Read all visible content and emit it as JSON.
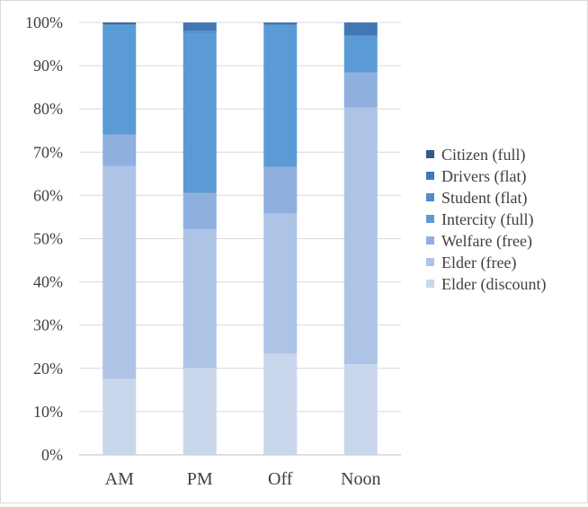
{
  "chart_data": {
    "type": "bar",
    "stacked": true,
    "percent_stacked": true,
    "title": "",
    "xlabel": "",
    "ylabel": "",
    "ylim": [
      0,
      100
    ],
    "yticks": [
      "0%",
      "10%",
      "20%",
      "30%",
      "40%",
      "50%",
      "60%",
      "70%",
      "80%",
      "90%",
      "100%"
    ],
    "grid": true,
    "legend_position": "right",
    "categories": [
      "AM",
      "PM",
      "Off",
      "Noon"
    ],
    "series": [
      {
        "name": "Elder (discount)",
        "color": "#c9d6ec",
        "values": [
          17.6,
          20.1,
          23.4,
          21.0
        ]
      },
      {
        "name": "Elder (free)",
        "color": "#adc4e6",
        "values": [
          49.2,
          32.1,
          32.4,
          59.3
        ]
      },
      {
        "name": "Welfare (free)",
        "color": "#8fb0de",
        "values": [
          7.3,
          8.4,
          10.8,
          8.1
        ]
      },
      {
        "name": "Intercity (full)",
        "color": "#5b9bd5",
        "values": [
          25.2,
          37.0,
          32.6,
          8.4
        ]
      },
      {
        "name": "Student (flat)",
        "color": "#4f8cc9",
        "values": [
          0.2,
          0.5,
          0.3,
          0.2
        ]
      },
      {
        "name": "Drivers (flat)",
        "color": "#4077b4",
        "values": [
          0.3,
          1.9,
          0.5,
          3.0
        ]
      },
      {
        "name": "Citizen (full)",
        "color": "#2e5b8e",
        "values": [
          0.2,
          0.0,
          0.0,
          0.0
        ]
      }
    ]
  }
}
